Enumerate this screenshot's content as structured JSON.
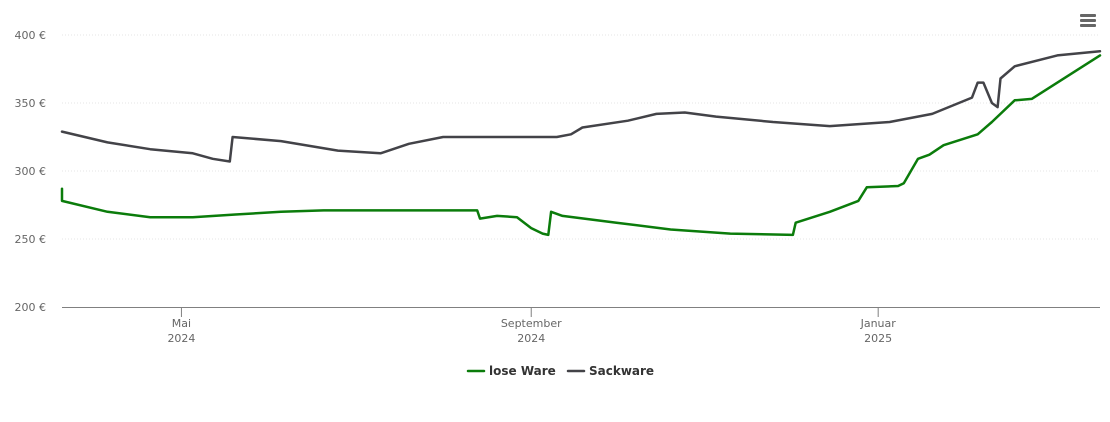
{
  "menu": {
    "icon": "hamburger-menu-icon"
  },
  "chart_data": {
    "type": "line",
    "title": "",
    "xlabel": "",
    "ylabel": "",
    "ylim": [
      200,
      400
    ],
    "xlim": [
      "2024-03-20",
      "2025-03-20"
    ],
    "y_ticks": [
      {
        "value": 200,
        "label": "200 €"
      },
      {
        "value": 250,
        "label": "250 €"
      },
      {
        "value": 300,
        "label": "300 €"
      },
      {
        "value": 350,
        "label": "350 €"
      },
      {
        "value": 400,
        "label": "400 €"
      }
    ],
    "x_ticks": [
      {
        "date": "2024-05-01",
        "label_line1": "Mai",
        "label_line2": "2024"
      },
      {
        "date": "2024-09-01",
        "label_line1": "September",
        "label_line2": "2024"
      },
      {
        "date": "2025-01-01",
        "label_line1": "Januar",
        "label_line2": "2025"
      }
    ],
    "grid": true,
    "legend_position": "bottom-center",
    "series": [
      {
        "name": "lose Ware",
        "color": "#0b7c0b",
        "points": [
          [
            "2024-03-20",
            287
          ],
          [
            "2024-03-20",
            278
          ],
          [
            "2024-04-05",
            270
          ],
          [
            "2024-04-20",
            266
          ],
          [
            "2024-05-05",
            266
          ],
          [
            "2024-05-20",
            268
          ],
          [
            "2024-06-05",
            270
          ],
          [
            "2024-06-20",
            271
          ],
          [
            "2024-07-15",
            271
          ],
          [
            "2024-08-10",
            271
          ],
          [
            "2024-08-13",
            271
          ],
          [
            "2024-08-14",
            265
          ],
          [
            "2024-08-20",
            267
          ],
          [
            "2024-08-27",
            266
          ],
          [
            "2024-09-01",
            258
          ],
          [
            "2024-09-05",
            254
          ],
          [
            "2024-09-07",
            253
          ],
          [
            "2024-09-08",
            270
          ],
          [
            "2024-09-12",
            267
          ],
          [
            "2024-10-01",
            262
          ],
          [
            "2024-10-20",
            257
          ],
          [
            "2024-11-10",
            254
          ],
          [
            "2024-12-02",
            253
          ],
          [
            "2024-12-03",
            262
          ],
          [
            "2024-12-15",
            270
          ],
          [
            "2024-12-25",
            278
          ],
          [
            "2024-12-28",
            288
          ],
          [
            "2025-01-08",
            289
          ],
          [
            "2025-01-10",
            291
          ],
          [
            "2025-01-15",
            309
          ],
          [
            "2025-01-19",
            312
          ],
          [
            "2025-01-24",
            319
          ],
          [
            "2025-02-05",
            327
          ],
          [
            "2025-02-10",
            336
          ],
          [
            "2025-02-18",
            352
          ],
          [
            "2025-02-24",
            353
          ],
          [
            "2025-03-20",
            385
          ]
        ]
      },
      {
        "name": "Sackware",
        "color": "#434348",
        "points": [
          [
            "2024-03-20",
            329
          ],
          [
            "2024-04-05",
            321
          ],
          [
            "2024-04-20",
            316
          ],
          [
            "2024-05-05",
            313
          ],
          [
            "2024-05-12",
            309
          ],
          [
            "2024-05-18",
            307
          ],
          [
            "2024-05-19",
            325
          ],
          [
            "2024-06-05",
            322
          ],
          [
            "2024-06-25",
            315
          ],
          [
            "2024-07-10",
            313
          ],
          [
            "2024-07-20",
            320
          ],
          [
            "2024-08-01",
            325
          ],
          [
            "2024-08-20",
            325
          ],
          [
            "2024-09-10",
            325
          ],
          [
            "2024-09-15",
            327
          ],
          [
            "2024-09-19",
            332
          ],
          [
            "2024-10-05",
            337
          ],
          [
            "2024-10-15",
            342
          ],
          [
            "2024-10-25",
            343
          ],
          [
            "2024-11-05",
            340
          ],
          [
            "2024-11-25",
            336
          ],
          [
            "2024-12-15",
            333
          ],
          [
            "2025-01-05",
            336
          ],
          [
            "2025-01-20",
            342
          ],
          [
            "2025-02-03",
            354
          ],
          [
            "2025-02-05",
            365
          ],
          [
            "2025-02-07",
            365
          ],
          [
            "2025-02-10",
            350
          ],
          [
            "2025-02-12",
            347
          ],
          [
            "2025-02-13",
            368
          ],
          [
            "2025-02-18",
            377
          ],
          [
            "2025-03-05",
            385
          ],
          [
            "2025-03-20",
            388
          ]
        ]
      }
    ]
  }
}
